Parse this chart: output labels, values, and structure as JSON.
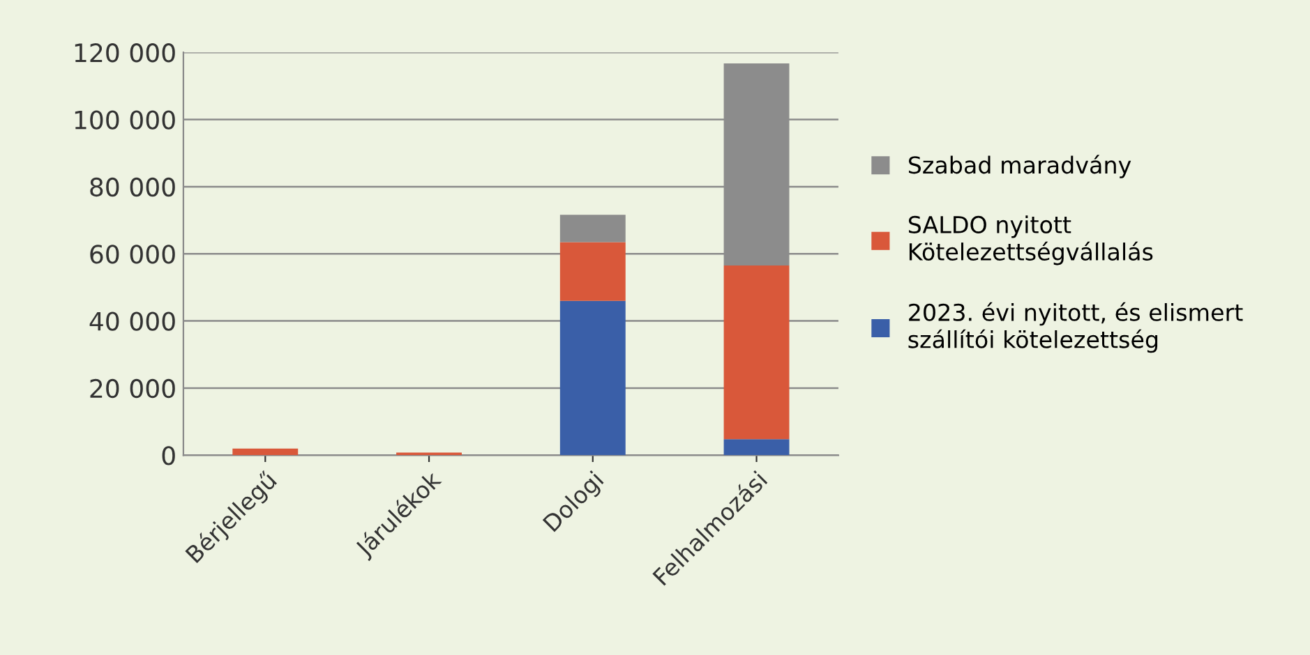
{
  "chart_data": {
    "type": "bar",
    "stacked": true,
    "categories": [
      "Bérjellegű",
      "Járulékok",
      "Dologi",
      "Felhalmozási"
    ],
    "series": [
      {
        "name": "2023. évi nyitott, és elismert\nszállítói kötelezettség",
        "color": "#3a5fa8",
        "values": [
          0,
          0,
          46000,
          4800
        ]
      },
      {
        "name": "SALDO nyitott\nKötelezettségvállalás",
        "color": "#d9583a",
        "values": [
          2000,
          800,
          17500,
          51700
        ]
      },
      {
        "name": "Szabad maradvány",
        "color": "#8c8c8c",
        "values": [
          0,
          0,
          8100,
          60200
        ]
      }
    ],
    "ylim": [
      0,
      120000
    ],
    "yticks": [
      {
        "value": 0,
        "label": "0"
      },
      {
        "value": 20000,
        "label": "20 000"
      },
      {
        "value": 40000,
        "label": "40 000"
      },
      {
        "value": 60000,
        "label": "60 000"
      },
      {
        "value": 80000,
        "label": "80 000"
      },
      {
        "value": 100000,
        "label": "100 000"
      },
      {
        "value": 120000,
        "label": "120 000"
      }
    ],
    "grid": "y",
    "legend": "right"
  }
}
